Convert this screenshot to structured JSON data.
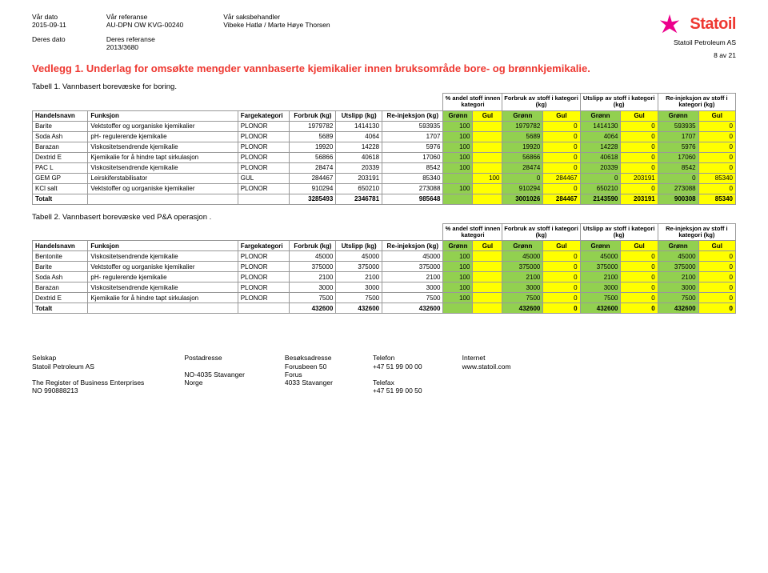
{
  "header": {
    "our_date_label": "Vår dato",
    "our_date": "2015-09-11",
    "our_ref_label": "Vår referanse",
    "our_ref": "AU-DPN OW KVG-00240",
    "handler_label": "Vår saksbehandler",
    "handler": "Vibeke Hatlø / Marte Høye Thorsen",
    "their_date_label": "Deres dato",
    "their_ref_label": "Deres referanse",
    "their_ref": "2013/3680",
    "company": "Statoil Petroleum AS",
    "logo_text": "Statoil",
    "page": "8 av 21"
  },
  "title": "Vedlegg 1. Underlag for omsøkte mengder vannbaserte kjemikalier innen bruksområde bore- og brønnkjemikalie.",
  "table1": {
    "caption": "Tabell 1. Vannbasert borevæske for boring.",
    "group_headers": [
      "% andel stoff innen kategori",
      "Forbruk av stoff i kategori (kg)",
      "Utslipp av stoff i kategori (kg)",
      "Re-injeksjon av stoff i kategori (kg)"
    ],
    "col_headers": [
      "Handelsnavn",
      "Funksjon",
      "Fargekategori",
      "Forbruk (kg)",
      "Utslipp (kg)",
      "Re-injeksjon (kg)",
      "Grønn",
      "Gul",
      "Grønn",
      "Gul",
      "Grønn",
      "Gul",
      "Grønn",
      "Gul"
    ],
    "rows": [
      [
        "Barite",
        "Vektstoffer og uorganiske kjemikalier",
        "PLONOR",
        "1979782",
        "1414130",
        "593935",
        "100",
        "",
        "1979782",
        "0",
        "1414130",
        "0",
        "593935",
        "0"
      ],
      [
        "Soda Ash",
        "pH- regulerende kjemikalie",
        "PLONOR",
        "5689",
        "4064",
        "1707",
        "100",
        "",
        "5689",
        "0",
        "4064",
        "0",
        "1707",
        "0"
      ],
      [
        "Barazan",
        "Viskositetsendrende kjemikalie",
        "PLONOR",
        "19920",
        "14228",
        "5976",
        "100",
        "",
        "19920",
        "0",
        "14228",
        "0",
        "5976",
        "0"
      ],
      [
        "Dextrid E",
        "Kjemikalie for å hindre tapt sirkulasjon",
        "PLONOR",
        "56866",
        "40618",
        "17060",
        "100",
        "",
        "56866",
        "0",
        "40618",
        "0",
        "17060",
        "0"
      ],
      [
        "PAC L",
        "Viskositetsendrende kjemikalie",
        "PLONOR",
        "28474",
        "20339",
        "8542",
        "100",
        "",
        "28474",
        "0",
        "20339",
        "0",
        "8542",
        "0"
      ],
      [
        "GEM GP",
        "Leirskiferstabilisator",
        "GUL",
        "284467",
        "203191",
        "85340",
        "",
        "100",
        "0",
        "284467",
        "0",
        "203191",
        "0",
        "85340"
      ],
      [
        "KCl salt",
        "Vektstoffer og uorganiske kjemikalier",
        "PLONOR",
        "910294",
        "650210",
        "273088",
        "100",
        "",
        "910294",
        "0",
        "650210",
        "0",
        "273088",
        "0"
      ]
    ],
    "total": [
      "Totalt",
      "",
      "",
      "3285493",
      "2346781",
      "985648",
      "",
      "",
      "3001026",
      "284467",
      "2143590",
      "203191",
      "900308",
      "85340"
    ]
  },
  "table2": {
    "caption": "Tabell 2. Vannbasert borevæske ved P&A operasjon .",
    "group_headers": [
      "% andel stoff innen kategori",
      "Forbruk av stoff i kategori (kg)",
      "Utslipp av stoff i kategori (kg)",
      "Re-injeksjon av stoff i kategori (kg)"
    ],
    "col_headers": [
      "Handelsnavn",
      "Funksjon",
      "Fargekategori",
      "Forbruk (kg)",
      "Utslipp (kg)",
      "Re-injeksjon (kg)",
      "Grønn",
      "Gul",
      "Grønn",
      "Gul",
      "Grønn",
      "Gul",
      "Grønn",
      "Gul"
    ],
    "rows": [
      [
        "Bentonite",
        "Viskositetsendrende kjemikalie",
        "PLONOR",
        "45000",
        "45000",
        "45000",
        "100",
        "",
        "45000",
        "0",
        "45000",
        "0",
        "45000",
        "0"
      ],
      [
        "Barite",
        "Vektstoffer og uorganiske kjemikalier",
        "PLONOR",
        "375000",
        "375000",
        "375000",
        "100",
        "",
        "375000",
        "0",
        "375000",
        "0",
        "375000",
        "0"
      ],
      [
        "Soda Ash",
        "pH- regulerende kjemikalie",
        "PLONOR",
        "2100",
        "2100",
        "2100",
        "100",
        "",
        "2100",
        "0",
        "2100",
        "0",
        "2100",
        "0"
      ],
      [
        "Barazan",
        "Viskositetsendrende kjemikalie",
        "PLONOR",
        "3000",
        "3000",
        "3000",
        "100",
        "",
        "3000",
        "0",
        "3000",
        "0",
        "3000",
        "0"
      ],
      [
        "Dextrid E",
        "Kjemikalie for å hindre tapt sirkulasjon",
        "PLONOR",
        "7500",
        "7500",
        "7500",
        "100",
        "",
        "7500",
        "0",
        "7500",
        "0",
        "7500",
        "0"
      ]
    ],
    "total": [
      "Totalt",
      "",
      "",
      "432600",
      "432600",
      "432600",
      "",
      "",
      "432600",
      "0",
      "432600",
      "0",
      "432600",
      "0"
    ]
  },
  "footer": {
    "c1": [
      "Selskap",
      "Statoil Petroleum AS",
      "",
      "The Register of Business Enterprises",
      "NO 990888213"
    ],
    "c2": [
      "Postadresse",
      "",
      "NO-4035 Stavanger",
      "Norge"
    ],
    "c3": [
      "Besøksadresse",
      "Forusbeen 50",
      "Forus",
      "4033 Stavanger"
    ],
    "c4": [
      "Telefon",
      "+47 51 99 00 00",
      "",
      "Telefax",
      "+47 51 99 00 50"
    ],
    "c5": [
      "Internet",
      "www.statoil.com"
    ]
  },
  "colors": {
    "green": "#92d050",
    "yellow": "#ffff00",
    "red": "#ee3831"
  }
}
